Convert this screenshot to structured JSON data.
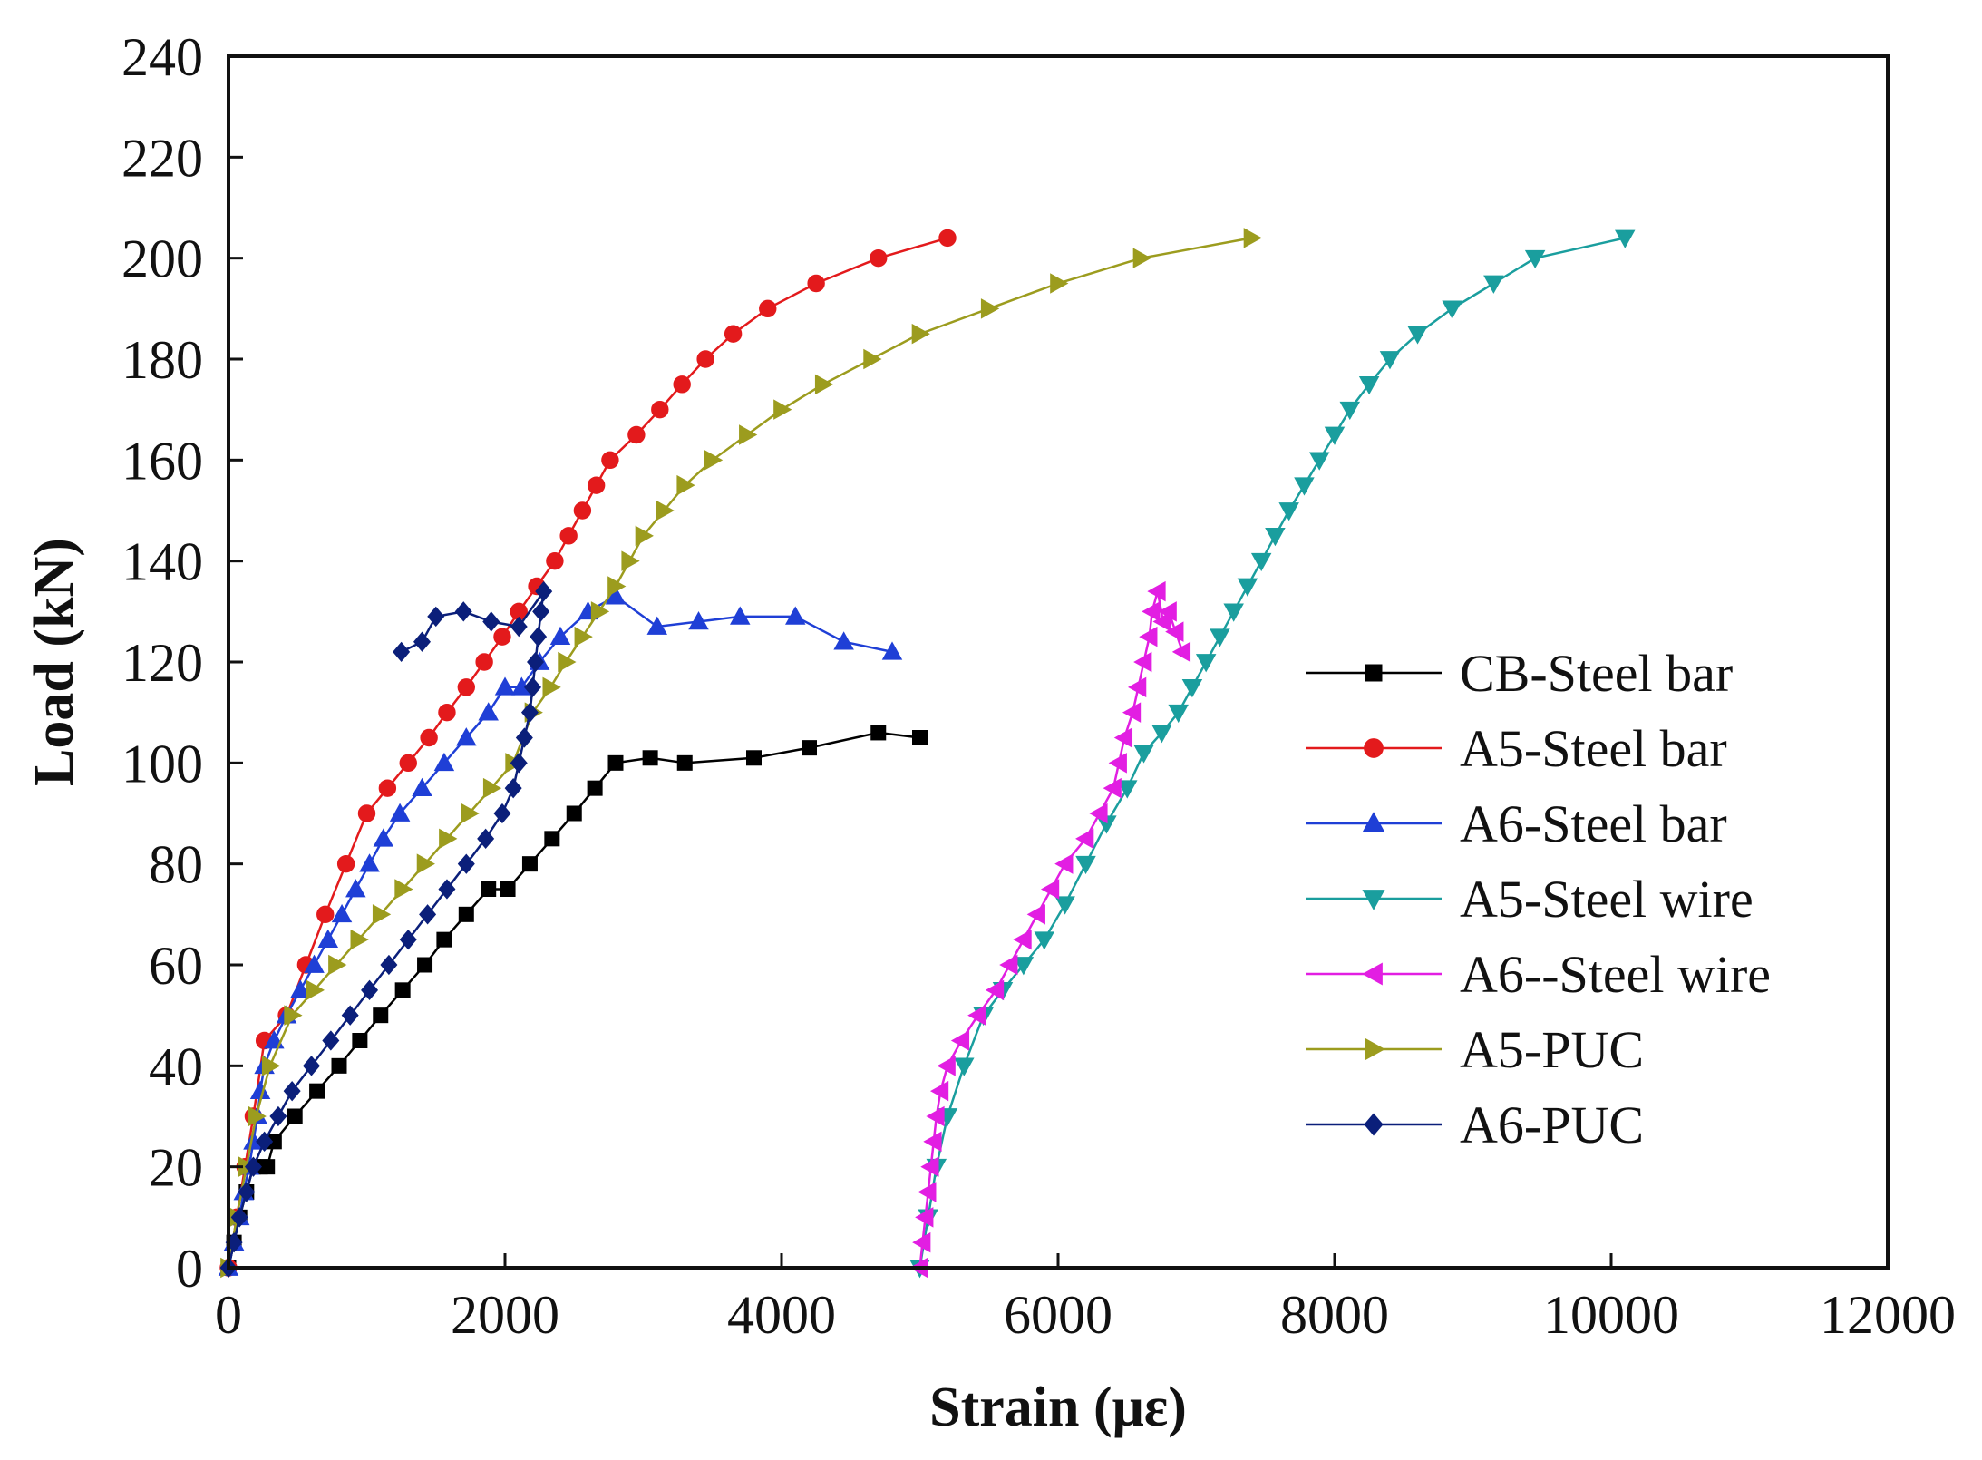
{
  "chart_data": {
    "type": "line",
    "title": "",
    "xlabel": "Strain (με)",
    "ylabel": "Load (kN)",
    "xlim": [
      0,
      12000
    ],
    "ylim": [
      0,
      240
    ],
    "xticks": [
      "0",
      "2000",
      "4000",
      "6000",
      "8000",
      "10000",
      "12000"
    ],
    "yticks": [
      "0",
      "20",
      "40",
      "60",
      "80",
      "100",
      "120",
      "140",
      "160",
      "180",
      "200",
      "220",
      "240"
    ],
    "grid": false,
    "legend_position": "right",
    "series": [
      {
        "name": "CB-Steel bar",
        "color": "#000000",
        "marker": "square",
        "points": [
          [
            0,
            0
          ],
          [
            40,
            5
          ],
          [
            80,
            10
          ],
          [
            130,
            15
          ],
          [
            180,
            20
          ],
          [
            230,
            20
          ],
          [
            280,
            20
          ],
          [
            330,
            25
          ],
          [
            480,
            30
          ],
          [
            640,
            35
          ],
          [
            800,
            40
          ],
          [
            950,
            45
          ],
          [
            1100,
            50
          ],
          [
            1260,
            55
          ],
          [
            1420,
            60
          ],
          [
            1560,
            65
          ],
          [
            1720,
            70
          ],
          [
            1880,
            75
          ],
          [
            2020,
            75
          ],
          [
            2180,
            80
          ],
          [
            2340,
            85
          ],
          [
            2500,
            90
          ],
          [
            2650,
            95
          ],
          [
            2800,
            100
          ],
          [
            3050,
            101
          ],
          [
            3300,
            100
          ],
          [
            3800,
            101
          ],
          [
            4200,
            103
          ],
          [
            4700,
            106
          ],
          [
            5000,
            105
          ]
        ]
      },
      {
        "name": "A5-Steel bar",
        "color": "#e31a1c",
        "marker": "circle",
        "points": [
          [
            0,
            0
          ],
          [
            60,
            10
          ],
          [
            120,
            20
          ],
          [
            180,
            30
          ],
          [
            260,
            45
          ],
          [
            420,
            50
          ],
          [
            560,
            60
          ],
          [
            700,
            70
          ],
          [
            850,
            80
          ],
          [
            1000,
            90
          ],
          [
            1150,
            95
          ],
          [
            1300,
            100
          ],
          [
            1450,
            105
          ],
          [
            1580,
            110
          ],
          [
            1720,
            115
          ],
          [
            1850,
            120
          ],
          [
            1980,
            125
          ],
          [
            2100,
            130
          ],
          [
            2230,
            135
          ],
          [
            2360,
            140
          ],
          [
            2460,
            145
          ],
          [
            2560,
            150
          ],
          [
            2660,
            155
          ],
          [
            2760,
            160
          ],
          [
            2950,
            165
          ],
          [
            3120,
            170
          ],
          [
            3280,
            175
          ],
          [
            3450,
            180
          ],
          [
            3650,
            185
          ],
          [
            3900,
            190
          ],
          [
            4250,
            195
          ],
          [
            4700,
            200
          ],
          [
            5200,
            204
          ]
        ]
      },
      {
        "name": "A6-Steel bar",
        "color": "#1f3fd6",
        "marker": "triangle-up",
        "points": [
          [
            0,
            0
          ],
          [
            40,
            5
          ],
          [
            80,
            10
          ],
          [
            110,
            15
          ],
          [
            150,
            20
          ],
          [
            180,
            25
          ],
          [
            210,
            30
          ],
          [
            230,
            35
          ],
          [
            260,
            40
          ],
          [
            330,
            45
          ],
          [
            420,
            50
          ],
          [
            520,
            55
          ],
          [
            620,
            60
          ],
          [
            720,
            65
          ],
          [
            820,
            70
          ],
          [
            920,
            75
          ],
          [
            1020,
            80
          ],
          [
            1120,
            85
          ],
          [
            1240,
            90
          ],
          [
            1400,
            95
          ],
          [
            1560,
            100
          ],
          [
            1720,
            105
          ],
          [
            1880,
            110
          ],
          [
            2000,
            115
          ],
          [
            2120,
            115
          ],
          [
            2250,
            120
          ],
          [
            2400,
            125
          ],
          [
            2600,
            130
          ],
          [
            2800,
            133
          ],
          [
            3100,
            127
          ],
          [
            3400,
            128
          ],
          [
            3700,
            129
          ],
          [
            4100,
            129
          ],
          [
            4450,
            124
          ],
          [
            4800,
            122
          ]
        ]
      },
      {
        "name": "A5-Steel wire",
        "color": "#1a9e9e",
        "marker": "triangle-down",
        "points": [
          [
            5000,
            0
          ],
          [
            5060,
            10
          ],
          [
            5120,
            20
          ],
          [
            5200,
            30
          ],
          [
            5320,
            40
          ],
          [
            5460,
            50
          ],
          [
            5600,
            55
          ],
          [
            5750,
            60
          ],
          [
            5900,
            65
          ],
          [
            6050,
            72
          ],
          [
            6200,
            80
          ],
          [
            6350,
            88
          ],
          [
            6500,
            95
          ],
          [
            6620,
            102
          ],
          [
            6750,
            106
          ],
          [
            6870,
            110
          ],
          [
            6970,
            115
          ],
          [
            7070,
            120
          ],
          [
            7170,
            125
          ],
          [
            7270,
            130
          ],
          [
            7370,
            135
          ],
          [
            7470,
            140
          ],
          [
            7570,
            145
          ],
          [
            7670,
            150
          ],
          [
            7780,
            155
          ],
          [
            7890,
            160
          ],
          [
            8000,
            165
          ],
          [
            8110,
            170
          ],
          [
            8250,
            175
          ],
          [
            8400,
            180
          ],
          [
            8600,
            185
          ],
          [
            8850,
            190
          ],
          [
            9150,
            195
          ],
          [
            9450,
            200
          ],
          [
            10100,
            204
          ]
        ]
      },
      {
        "name": "A6--Steel wire",
        "color": "#e21ee2",
        "marker": "triangle-left",
        "points": [
          [
            5000,
            0
          ],
          [
            5020,
            5
          ],
          [
            5040,
            10
          ],
          [
            5060,
            15
          ],
          [
            5080,
            20
          ],
          [
            5100,
            25
          ],
          [
            5120,
            30
          ],
          [
            5150,
            35
          ],
          [
            5200,
            40
          ],
          [
            5300,
            45
          ],
          [
            5420,
            50
          ],
          [
            5550,
            55
          ],
          [
            5650,
            60
          ],
          [
            5750,
            65
          ],
          [
            5850,
            70
          ],
          [
            5950,
            75
          ],
          [
            6050,
            80
          ],
          [
            6200,
            85
          ],
          [
            6300,
            90
          ],
          [
            6400,
            95
          ],
          [
            6440,
            100
          ],
          [
            6480,
            105
          ],
          [
            6540,
            110
          ],
          [
            6580,
            115
          ],
          [
            6620,
            120
          ],
          [
            6660,
            125
          ],
          [
            6680,
            130
          ],
          [
            6720,
            134
          ],
          [
            6760,
            128
          ],
          [
            6800,
            130
          ],
          [
            6850,
            126
          ],
          [
            6900,
            122
          ]
        ]
      },
      {
        "name": "A5-PUC",
        "color": "#9c9c1e",
        "marker": "triangle-right",
        "points": [
          [
            0,
            0
          ],
          [
            60,
            10
          ],
          [
            130,
            20
          ],
          [
            200,
            30
          ],
          [
            300,
            40
          ],
          [
            460,
            50
          ],
          [
            620,
            55
          ],
          [
            780,
            60
          ],
          [
            940,
            65
          ],
          [
            1100,
            70
          ],
          [
            1260,
            75
          ],
          [
            1420,
            80
          ],
          [
            1580,
            85
          ],
          [
            1740,
            90
          ],
          [
            1900,
            95
          ],
          [
            2060,
            100
          ],
          [
            2200,
            110
          ],
          [
            2330,
            115
          ],
          [
            2440,
            120
          ],
          [
            2560,
            125
          ],
          [
            2680,
            130
          ],
          [
            2800,
            135
          ],
          [
            2900,
            140
          ],
          [
            3000,
            145
          ],
          [
            3150,
            150
          ],
          [
            3300,
            155
          ],
          [
            3500,
            160
          ],
          [
            3750,
            165
          ],
          [
            4000,
            170
          ],
          [
            4300,
            175
          ],
          [
            4650,
            180
          ],
          [
            5000,
            185
          ],
          [
            5500,
            190
          ],
          [
            6000,
            195
          ],
          [
            6600,
            200
          ],
          [
            7400,
            204
          ]
        ]
      },
      {
        "name": "A6-PUC",
        "color": "#0b1f7a",
        "marker": "diamond",
        "points": [
          [
            0,
            0
          ],
          [
            40,
            5
          ],
          [
            80,
            10
          ],
          [
            130,
            15
          ],
          [
            180,
            20
          ],
          [
            260,
            25
          ],
          [
            360,
            30
          ],
          [
            460,
            35
          ],
          [
            600,
            40
          ],
          [
            740,
            45
          ],
          [
            880,
            50
          ],
          [
            1020,
            55
          ],
          [
            1160,
            60
          ],
          [
            1300,
            65
          ],
          [
            1440,
            70
          ],
          [
            1580,
            75
          ],
          [
            1720,
            80
          ],
          [
            1860,
            85
          ],
          [
            1980,
            90
          ],
          [
            2060,
            95
          ],
          [
            2100,
            100
          ],
          [
            2140,
            105
          ],
          [
            2180,
            110
          ],
          [
            2200,
            115
          ],
          [
            2220,
            120
          ],
          [
            2240,
            125
          ],
          [
            2260,
            130
          ],
          [
            2280,
            134
          ],
          [
            2100,
            127
          ],
          [
            1900,
            128
          ],
          [
            1700,
            130
          ],
          [
            1500,
            129
          ],
          [
            1400,
            124
          ],
          [
            1250,
            122
          ]
        ]
      }
    ]
  }
}
